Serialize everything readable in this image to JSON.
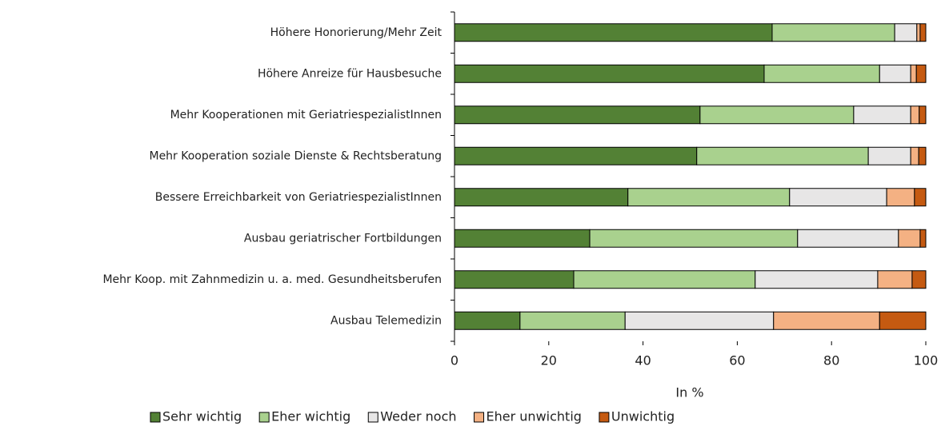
{
  "chart_data": {
    "type": "stacked_barh",
    "categories": [
      "Höhere Honorierung/Mehr Zeit",
      "Höhere Anreize für Hausbesuche",
      "Mehr Kooperationen mit GeriatriespezialistInnen",
      "Mehr Kooperation soziale Dienste & Rechtsberatung",
      "Bessere Erreichbarkeit von GeriatriespezialistInnen",
      "Ausbau geriatrischer Fortbildungen",
      "Mehr Koop. mit Zahnmedizin u. a. med. Gesundheitsberufen",
      "Ausbau Telemedizin"
    ],
    "series": [
      {
        "name": "Sehr wichtig",
        "color": "#538135",
        "values": [
          67.4,
          65.7,
          52.1,
          51.4,
          36.8,
          28.7,
          25.3,
          13.9
        ]
      },
      {
        "name": "Eher wichtig",
        "color": "#a9d18e",
        "values": [
          26.0,
          24.5,
          32.6,
          36.4,
          34.3,
          44.1,
          38.5,
          22.3
        ]
      },
      {
        "name": "Weder noch",
        "color": "#e7e6e6",
        "values": [
          4.7,
          6.6,
          12.1,
          9.0,
          20.6,
          21.4,
          26.0,
          31.5
        ]
      },
      {
        "name": "Eher unwichtig",
        "color": "#f4b183",
        "values": [
          0.7,
          1.2,
          1.8,
          1.7,
          5.9,
          4.6,
          7.3,
          22.5
        ]
      },
      {
        "name": "Unwichtig",
        "color": "#c55a11",
        "values": [
          1.2,
          2.0,
          1.4,
          1.5,
          2.4,
          1.2,
          2.9,
          9.8
        ]
      }
    ],
    "x_label": "In %",
    "xlim": [
      0,
      100
    ],
    "xticks": [
      0,
      20,
      40,
      60,
      80,
      100
    ],
    "legend": "bottom"
  }
}
